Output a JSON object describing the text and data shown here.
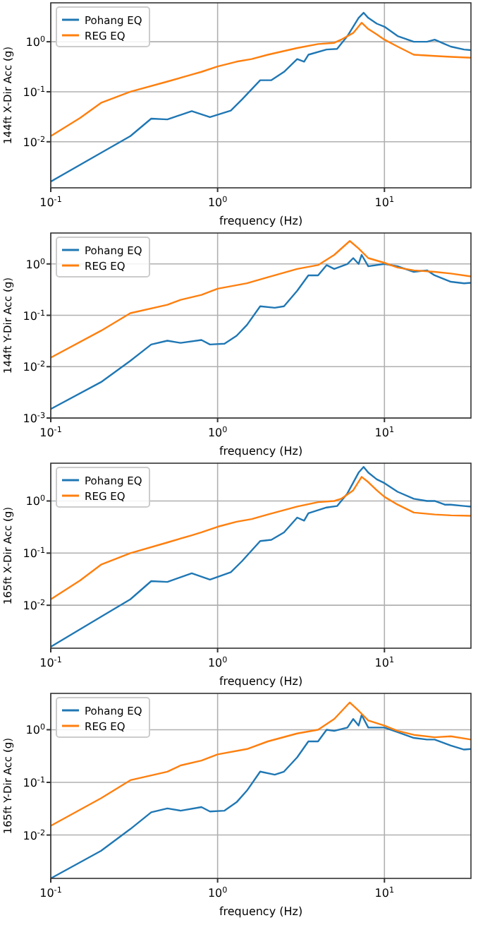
{
  "chart_data": [
    {
      "type": "line",
      "xlabel": "frequency (Hz)",
      "ylabel": "144ft X-Dir Acc (g)",
      "log": "xy",
      "grid": true,
      "legend": "top left",
      "xlim": [
        0.1,
        33
      ],
      "xticks": [
        {
          "value": 0.1,
          "label": "10$^{-1}$"
        },
        {
          "value": 1,
          "label": "10$^{0}$"
        },
        {
          "value": 10,
          "label": "10$^{1}$"
        }
      ],
      "ylim": [
        0.0012,
        6
      ],
      "yticks": [
        {
          "value": 0.01,
          "label": "10$^{-2}$"
        },
        {
          "value": 0.1,
          "label": "10$^{-1}$"
        },
        {
          "value": 1,
          "label": "10$^{0}$"
        }
      ],
      "series": [
        {
          "name": "Pohang EQ",
          "color": "#1f77b4",
          "x": [
            0.1,
            0.2,
            0.3,
            0.4,
            0.5,
            0.7,
            0.9,
            1.2,
            1.4,
            1.8,
            2.1,
            2.5,
            3,
            3.3,
            3.5,
            4.5,
            5.2,
            6,
            7,
            7.5,
            8,
            9,
            10,
            12,
            15,
            18,
            20,
            23,
            25,
            30,
            33
          ],
          "values": [
            0.0016,
            0.006,
            0.013,
            0.029,
            0.028,
            0.041,
            0.031,
            0.042,
            0.07,
            0.17,
            0.17,
            0.25,
            0.45,
            0.4,
            0.55,
            0.7,
            0.72,
            1.3,
            3.0,
            3.8,
            3.0,
            2.3,
            2.0,
            1.3,
            1.0,
            1.0,
            1.1,
            0.9,
            0.8,
            0.7,
            0.68
          ]
        },
        {
          "name": "REG EQ",
          "color": "#ff7f0e",
          "x": [
            0.1,
            0.15,
            0.2,
            0.3,
            0.5,
            0.7,
            0.8,
            1,
            1.3,
            1.6,
            2,
            3,
            4,
            5,
            5.5,
            6.5,
            7.3,
            8,
            9,
            10,
            12,
            15,
            20,
            25,
            33
          ],
          "values": [
            0.013,
            0.03,
            0.06,
            0.1,
            0.16,
            0.22,
            0.25,
            0.32,
            0.4,
            0.45,
            0.55,
            0.75,
            0.9,
            0.95,
            1.1,
            1.5,
            2.4,
            1.8,
            1.4,
            1.1,
            0.8,
            0.55,
            0.52,
            0.5,
            0.48
          ]
        }
      ]
    },
    {
      "type": "line",
      "xlabel": "frequency (Hz)",
      "ylabel": "144ft Y-Dir Acc (g)",
      "log": "xy",
      "grid": true,
      "legend": "top left",
      "xlim": [
        0.1,
        33
      ],
      "xticks": [
        {
          "value": 0.1,
          "label": "10$^{-1}$"
        },
        {
          "value": 1,
          "label": "10$^{0}$"
        },
        {
          "value": 10,
          "label": "10$^{1}$"
        }
      ],
      "ylim": [
        0.001,
        4
      ],
      "yticks": [
        {
          "value": 0.001,
          "label": "10$^{-3}$"
        },
        {
          "value": 0.01,
          "label": "10$^{-2}$"
        },
        {
          "value": 0.1,
          "label": "10$^{-1}$"
        },
        {
          "value": 1,
          "label": "10$^{0}$"
        }
      ],
      "series": [
        {
          "name": "Pohang EQ",
          "color": "#1f77b4",
          "x": [
            0.1,
            0.2,
            0.3,
            0.4,
            0.5,
            0.6,
            0.8,
            0.9,
            1.1,
            1.3,
            1.5,
            1.8,
            2.2,
            2.5,
            3,
            3.5,
            4,
            4.5,
            5,
            6,
            6.5,
            7,
            7.3,
            8,
            10,
            12,
            15,
            18,
            20,
            25,
            30,
            33
          ],
          "values": [
            0.0015,
            0.005,
            0.013,
            0.027,
            0.032,
            0.029,
            0.033,
            0.027,
            0.028,
            0.04,
            0.065,
            0.15,
            0.14,
            0.15,
            0.3,
            0.6,
            0.6,
            0.95,
            0.8,
            1.0,
            1.3,
            1.0,
            1.5,
            0.9,
            1.0,
            0.9,
            0.7,
            0.75,
            0.6,
            0.45,
            0.42,
            0.43
          ]
        },
        {
          "name": "REG EQ",
          "color": "#ff7f0e",
          "x": [
            0.1,
            0.2,
            0.3,
            0.5,
            0.6,
            0.8,
            1,
            1.5,
            2,
            3,
            4,
            5,
            6.2,
            7,
            8,
            10,
            12,
            15,
            20,
            25,
            33
          ],
          "values": [
            0.015,
            0.05,
            0.11,
            0.16,
            0.2,
            0.25,
            0.33,
            0.42,
            0.55,
            0.8,
            0.95,
            1.5,
            2.8,
            2.0,
            1.3,
            1.05,
            0.85,
            0.75,
            0.7,
            0.65,
            0.57
          ]
        }
      ]
    },
    {
      "type": "line",
      "xlabel": "frequency (Hz)",
      "ylabel": "165ft X-Dir Acc (g)",
      "log": "xy",
      "grid": true,
      "legend": "top left",
      "xlim": [
        0.1,
        33
      ],
      "xticks": [
        {
          "value": 0.1,
          "label": "10$^{-1}$"
        },
        {
          "value": 1,
          "label": "10$^{0}$"
        },
        {
          "value": 10,
          "label": "10$^{1}$"
        }
      ],
      "ylim": [
        0.0015,
        5.3
      ],
      "yticks": [
        {
          "value": 0.01,
          "label": "10$^{-2}$"
        },
        {
          "value": 0.1,
          "label": "10$^{-1}$"
        },
        {
          "value": 1,
          "label": "10$^{0}$"
        }
      ],
      "series": [
        {
          "name": "Pohang EQ",
          "color": "#1f77b4",
          "x": [
            0.1,
            0.2,
            0.3,
            0.4,
            0.5,
            0.7,
            0.9,
            1.2,
            1.4,
            1.8,
            2.1,
            2.5,
            3,
            3.3,
            3.5,
            4.5,
            5.2,
            6,
            7,
            7.5,
            8,
            9,
            10,
            12,
            15,
            18,
            20,
            23,
            25,
            30,
            33
          ],
          "values": [
            0.0016,
            0.006,
            0.013,
            0.029,
            0.028,
            0.041,
            0.031,
            0.043,
            0.07,
            0.17,
            0.18,
            0.25,
            0.48,
            0.42,
            0.58,
            0.75,
            0.8,
            1.4,
            3.5,
            4.5,
            3.5,
            2.6,
            2.2,
            1.5,
            1.1,
            1.0,
            1.0,
            0.85,
            0.85,
            0.8,
            0.78
          ]
        },
        {
          "name": "REG EQ",
          "color": "#ff7f0e",
          "x": [
            0.1,
            0.15,
            0.2,
            0.3,
            0.5,
            0.7,
            0.8,
            1,
            1.3,
            1.6,
            2,
            3,
            4,
            5,
            5.5,
            6.5,
            7.3,
            8,
            9,
            10,
            12,
            15,
            20,
            25,
            33
          ],
          "values": [
            0.013,
            0.03,
            0.06,
            0.1,
            0.16,
            0.22,
            0.25,
            0.32,
            0.4,
            0.45,
            0.55,
            0.78,
            0.95,
            1.0,
            1.1,
            1.6,
            2.9,
            2.3,
            1.6,
            1.2,
            0.85,
            0.6,
            0.55,
            0.53,
            0.52
          ]
        }
      ]
    },
    {
      "type": "line",
      "xlabel": "frequency (Hz)",
      "ylabel": "165ft Y-Dir Acc (g)",
      "log": "xy",
      "grid": true,
      "legend": "top left",
      "xlim": [
        0.1,
        33
      ],
      "xticks": [
        {
          "value": 0.1,
          "label": "10$^{-1}$"
        },
        {
          "value": 1,
          "label": "10$^{0}$"
        },
        {
          "value": 10,
          "label": "10$^{1}$"
        }
      ],
      "ylim": [
        0.0015,
        4.9
      ],
      "yticks": [
        {
          "value": 0.01,
          "label": "10$^{-2}$"
        },
        {
          "value": 0.1,
          "label": "10$^{-1}$"
        },
        {
          "value": 1,
          "label": "10$^{0}$"
        }
      ],
      "series": [
        {
          "name": "Pohang EQ",
          "color": "#1f77b4",
          "x": [
            0.1,
            0.2,
            0.3,
            0.4,
            0.5,
            0.6,
            0.8,
            0.9,
            1.1,
            1.3,
            1.5,
            1.8,
            2.2,
            2.5,
            3,
            3.5,
            4,
            4.5,
            5,
            6,
            6.5,
            7,
            7.3,
            8,
            10,
            12,
            15,
            18,
            20,
            25,
            30,
            33
          ],
          "values": [
            0.0015,
            0.005,
            0.013,
            0.027,
            0.032,
            0.029,
            0.034,
            0.028,
            0.029,
            0.042,
            0.07,
            0.16,
            0.14,
            0.16,
            0.3,
            0.6,
            0.6,
            1.0,
            0.95,
            1.1,
            1.6,
            1.2,
            1.9,
            1.1,
            1.1,
            0.9,
            0.7,
            0.65,
            0.65,
            0.5,
            0.42,
            0.43
          ]
        },
        {
          "name": "REG EQ",
          "color": "#ff7f0e",
          "x": [
            0.1,
            0.2,
            0.3,
            0.5,
            0.6,
            0.8,
            1,
            1.5,
            2,
            3,
            4,
            5,
            6.2,
            7,
            8,
            10,
            12,
            15,
            20,
            25,
            33
          ],
          "values": [
            0.015,
            0.05,
            0.11,
            0.16,
            0.21,
            0.26,
            0.34,
            0.43,
            0.6,
            0.85,
            1.0,
            1.6,
            3.3,
            2.3,
            1.5,
            1.2,
            0.95,
            0.8,
            0.72,
            0.75,
            0.65
          ]
        }
      ]
    }
  ]
}
